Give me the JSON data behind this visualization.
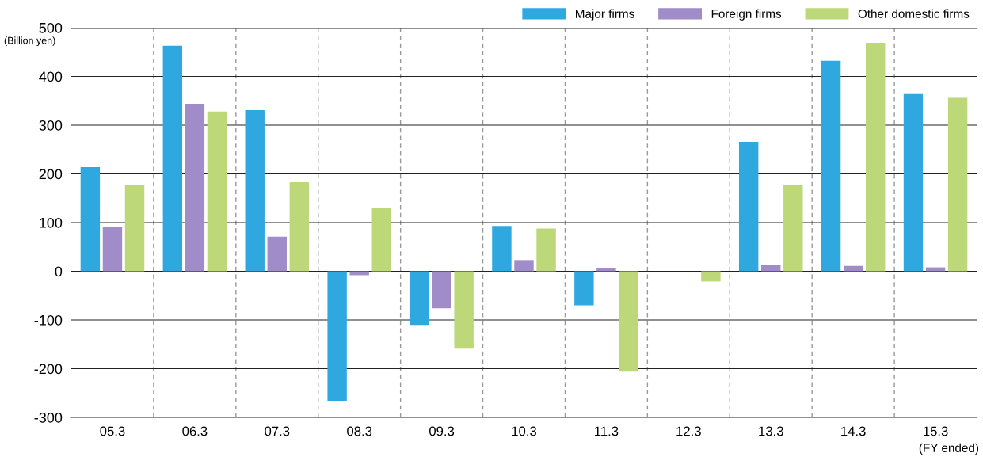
{
  "chart_data": {
    "type": "bar",
    "categories": [
      "05.3",
      "06.3",
      "07.3",
      "08.3",
      "09.3",
      "10.3",
      "11.3",
      "12.3",
      "13.3",
      "14.3",
      "15.3"
    ],
    "series": [
      {
        "name": "Major firms",
        "color": "#2fa8e0",
        "values": [
          214,
          463,
          331,
          -266,
          -110,
          93,
          -70,
          null,
          266,
          432,
          364
        ]
      },
      {
        "name": "Foreign firms",
        "color": "#a08cc8",
        "values": [
          91,
          344,
          71,
          -8,
          -76,
          23,
          6,
          null,
          13,
          11,
          8
        ]
      },
      {
        "name": "Other domestic firms",
        "color": "#bcd878",
        "values": [
          177,
          328,
          183,
          130,
          -159,
          88,
          -206,
          -21,
          177,
          469,
          356
        ]
      }
    ],
    "ylim": [
      -300,
      500
    ],
    "yticks": [
      -300,
      -200,
      -100,
      0,
      100,
      200,
      300,
      400,
      500
    ],
    "grid": true,
    "legend": "top right",
    "annotations": [
      "(Billion yen)",
      "(FY ended)"
    ]
  }
}
